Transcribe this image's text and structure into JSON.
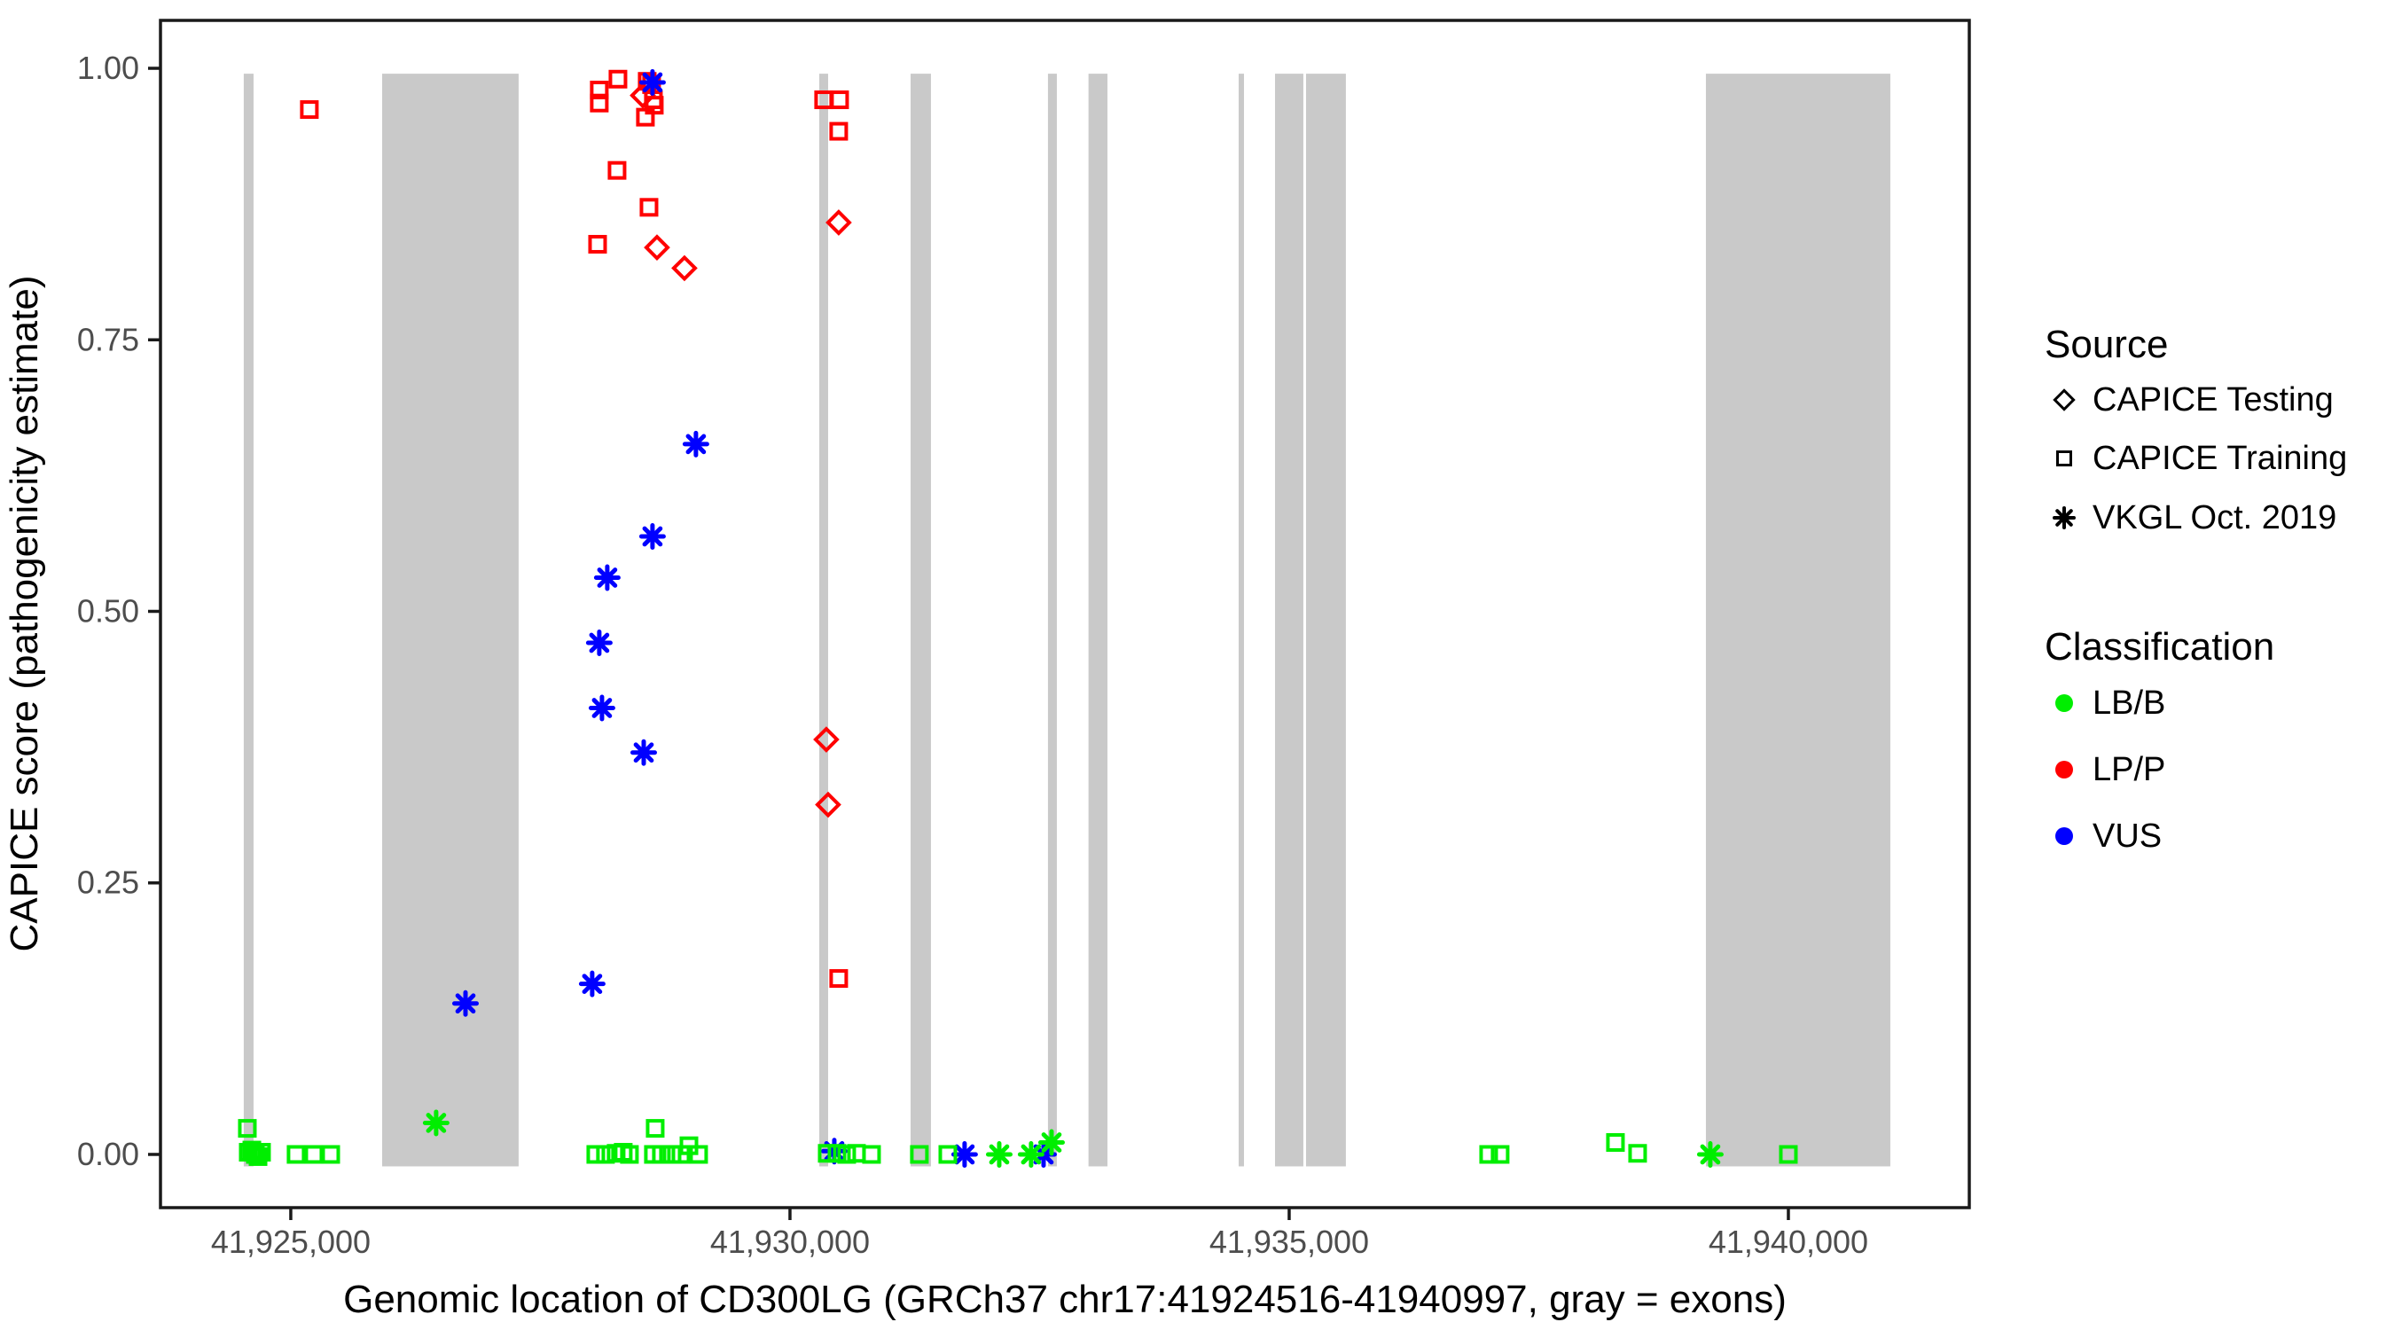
{
  "chart_data": {
    "type": "scatter",
    "title": "",
    "xlabel": "Genomic location of CD300LG (GRCh37 chr17:41924516-41940997, gray = exons)",
    "ylabel": "CAPICE score (pathogenicity estimate)",
    "x_axis": {
      "range": [
        41923695,
        41941812
      ],
      "ticks": [
        {
          "value": 41925000,
          "label": "41,925,000"
        },
        {
          "value": 41930000,
          "label": "41,930,000"
        },
        {
          "value": 41935000,
          "label": "41,935,000"
        },
        {
          "value": 41940000,
          "label": "41,940,000"
        }
      ]
    },
    "y_axis": {
      "range": [
        -0.049,
        1.0441
      ],
      "ticks": [
        {
          "value": 0.0,
          "label": "0.00"
        },
        {
          "value": 0.25,
          "label": "0.25"
        },
        {
          "value": 0.5,
          "label": "0.50"
        },
        {
          "value": 0.75,
          "label": "0.75"
        },
        {
          "value": 1.0,
          "label": "1.00"
        }
      ]
    },
    "grid": "off",
    "exon_color": "#C9C9C9",
    "exon_score_span": [
      -0.011,
      0.995
    ],
    "exons": [
      [
        41924529,
        41924627
      ],
      [
        41925915,
        41927282
      ],
      [
        41930293,
        41930382
      ],
      [
        41931208,
        41931412
      ],
      [
        41932584,
        41932673
      ],
      [
        41932990,
        41933180
      ],
      [
        41934494,
        41934547
      ],
      [
        41934858,
        41935142
      ],
      [
        41935169,
        41935568
      ],
      [
        41939174,
        41941021
      ]
    ],
    "points": [
      [
        41925186,
        0.962,
        "training",
        "LP/P"
      ],
      [
        41928090,
        0.98,
        "training",
        "LP/P"
      ],
      [
        41928090,
        0.968,
        "training",
        "LP/P"
      ],
      [
        41928277,
        0.99,
        "training",
        "LP/P"
      ],
      [
        41928570,
        0.988,
        "training",
        "LP/P"
      ],
      [
        41928614,
        0.985,
        "training",
        "LP/P"
      ],
      [
        41928632,
        0.971,
        "training",
        "LP/P"
      ],
      [
        41928641,
        0.966,
        "training",
        "LP/P"
      ],
      [
        41928552,
        0.955,
        "training",
        "LP/P"
      ],
      [
        41928268,
        0.906,
        "training",
        "LP/P"
      ],
      [
        41928588,
        0.872,
        "training",
        "LP/P"
      ],
      [
        41928073,
        0.838,
        "training",
        "LP/P"
      ],
      [
        41930337,
        0.971,
        "training",
        "LP/P"
      ],
      [
        41930497,
        0.971,
        "training",
        "LP/P"
      ],
      [
        41930488,
        0.942,
        "training",
        "LP/P"
      ],
      [
        41930488,
        0.162,
        "training",
        "LP/P"
      ],
      [
        41928526,
        0.975,
        "testing",
        "LP/P"
      ],
      [
        41928668,
        0.835,
        "testing",
        "LP/P"
      ],
      [
        41928943,
        0.816,
        "testing",
        "LP/P"
      ],
      [
        41930488,
        0.858,
        "testing",
        "LP/P"
      ],
      [
        41930364,
        0.382,
        "testing",
        "LP/P"
      ],
      [
        41930382,
        0.322,
        "testing",
        "LP/P"
      ],
      [
        41928623,
        0.987,
        "vkgl",
        "VUS"
      ],
      [
        41929058,
        0.654,
        "vkgl",
        "VUS"
      ],
      [
        41928623,
        0.569,
        "vkgl",
        "VUS"
      ],
      [
        41928170,
        0.531,
        "vkgl",
        "VUS"
      ],
      [
        41928090,
        0.471,
        "vkgl",
        "VUS"
      ],
      [
        41928117,
        0.411,
        "vkgl",
        "VUS"
      ],
      [
        41928535,
        0.37,
        "vkgl",
        "VUS"
      ],
      [
        41926750,
        0.139,
        "vkgl",
        "VUS"
      ],
      [
        41928019,
        0.157,
        "vkgl",
        "VUS"
      ],
      [
        41930444,
        0.003,
        "vkgl",
        "VUS"
      ],
      [
        41931749,
        0.0,
        "vkgl",
        "VUS"
      ],
      [
        41932540,
        0.0,
        "vkgl",
        "VUS"
      ],
      [
        41924565,
        0.024,
        "training",
        "LB/B"
      ],
      [
        41924574,
        0.002,
        "training",
        "LB/B"
      ],
      [
        41924610,
        0.004,
        "training",
        "LB/B"
      ],
      [
        41924645,
        0.0,
        "training",
        "LB/B"
      ],
      [
        41924672,
        -0.002,
        "training",
        "LB/B"
      ],
      [
        41924707,
        0.002,
        "training",
        "LB/B"
      ],
      [
        41925053,
        0.0,
        "training",
        "LB/B"
      ],
      [
        41925231,
        0.0,
        "training",
        "LB/B"
      ],
      [
        41925400,
        0.0,
        "training",
        "LB/B"
      ],
      [
        41928055,
        0.0,
        "training",
        "LB/B"
      ],
      [
        41928152,
        0.0,
        "training",
        "LB/B"
      ],
      [
        41928259,
        0.001,
        "training",
        "LB/B"
      ],
      [
        41928330,
        0.002,
        "training",
        "LB/B"
      ],
      [
        41928392,
        0.0,
        "training",
        "LB/B"
      ],
      [
        41928650,
        0.024,
        "training",
        "LB/B"
      ],
      [
        41928632,
        0.0,
        "training",
        "LB/B"
      ],
      [
        41928712,
        0.0,
        "training",
        "LB/B"
      ],
      [
        41928819,
        0.0,
        "training",
        "LB/B"
      ],
      [
        41928908,
        0.0,
        "training",
        "LB/B"
      ],
      [
        41928988,
        0.008,
        "training",
        "LB/B"
      ],
      [
        41929085,
        0.0,
        "training",
        "LB/B"
      ],
      [
        41930373,
        0.001,
        "training",
        "LB/B"
      ],
      [
        41930471,
        0.001,
        "training",
        "LB/B"
      ],
      [
        41930568,
        0.0,
        "training",
        "LB/B"
      ],
      [
        41930666,
        0.001,
        "training",
        "LB/B"
      ],
      [
        41930817,
        0.0,
        "training",
        "LB/B"
      ],
      [
        41931296,
        0.0,
        "training",
        "LB/B"
      ],
      [
        41931581,
        0.0,
        "training",
        "LB/B"
      ],
      [
        41936998,
        0.0,
        "training",
        "LB/B"
      ],
      [
        41937113,
        0.0,
        "training",
        "LB/B"
      ],
      [
        41938268,
        0.011,
        "training",
        "LB/B"
      ],
      [
        41938490,
        0.001,
        "training",
        "LB/B"
      ],
      [
        41940000,
        0.0,
        "training",
        "LB/B"
      ],
      [
        41926456,
        0.029,
        "vkgl",
        "LB/B"
      ],
      [
        41932096,
        0.0,
        "vkgl",
        "LB/B"
      ],
      [
        41932415,
        0.0,
        "vkgl",
        "LB/B"
      ],
      [
        41932620,
        0.011,
        "vkgl",
        "LB/B"
      ],
      [
        41939218,
        0.0,
        "vkgl",
        "LB/B"
      ]
    ]
  },
  "colors": {
    "LB/B": "#00EE00",
    "LP/P": "#FF0000",
    "VUS": "#0000FF",
    "exon": "#C9C9C9",
    "tick_text": "#4D4D4D",
    "border": "#1A1A1A"
  },
  "legend": {
    "source": {
      "title": "Source",
      "items": [
        {
          "label": "CAPICE Testing",
          "marker": "diamond"
        },
        {
          "label": "CAPICE Training",
          "marker": "square"
        },
        {
          "label": "VKGL Oct. 2019",
          "marker": "asterisk"
        }
      ]
    },
    "classification": {
      "title": "Classification",
      "items": [
        {
          "label": "LB/B",
          "color": "#00EE00"
        },
        {
          "label": "LP/P",
          "color": "#FF0000"
        },
        {
          "label": "VUS",
          "color": "#0000FF"
        }
      ]
    }
  }
}
